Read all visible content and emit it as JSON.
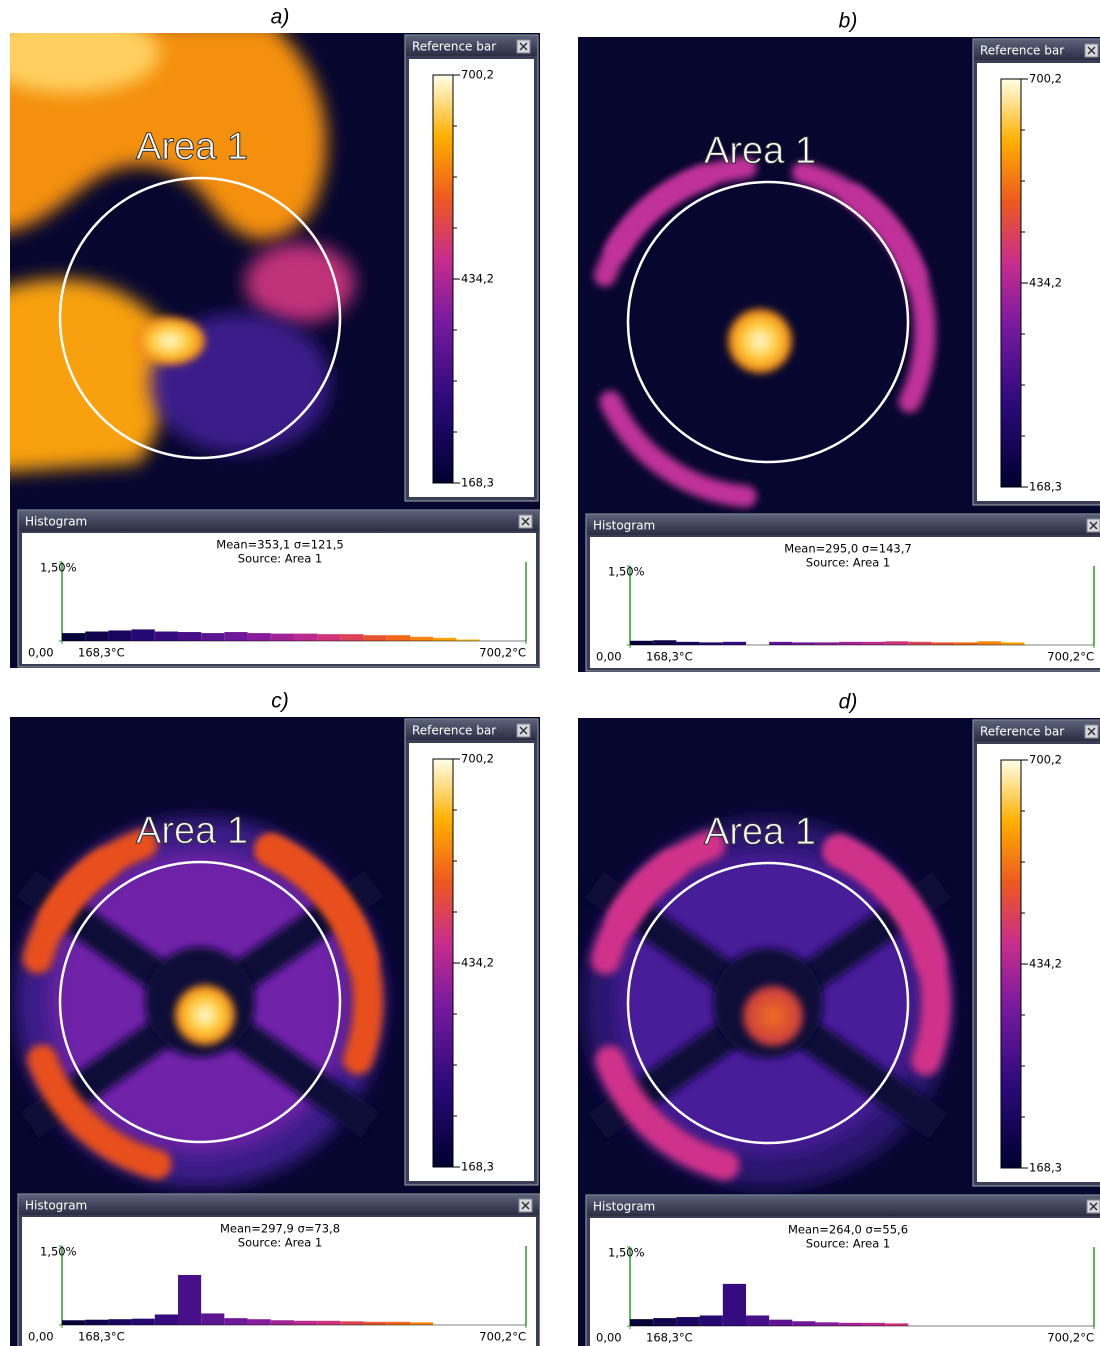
{
  "panels": [
    {
      "label": "a)",
      "area_label": "Area 1",
      "reference_bar": {
        "title": "Reference bar",
        "clim": [
          168.3,
          700.2
        ],
        "ticks": [
          {
            "value": 700.2,
            "label": "700,2"
          },
          {
            "value": 434.2,
            "label": "434,2"
          },
          {
            "value": 168.3,
            "label": "168,3"
          }
        ]
      },
      "histogram": {
        "type": "histogram",
        "title": "Histogram",
        "stats": "Mean=353,1 σ=121,5",
        "source": "Source:  Area 1",
        "bins": [
          168.3,
          194.9,
          221.5,
          248.1,
          274.7,
          301.3,
          327.8,
          354.4,
          381.0,
          407.6,
          434.2,
          460.8,
          487.4,
          514.0,
          540.6,
          567.2,
          593.8,
          620.4,
          647.0,
          673.6,
          700.2
        ],
        "values": [
          0.15,
          0.18,
          0.2,
          0.22,
          0.18,
          0.17,
          0.15,
          0.17,
          0.15,
          0.14,
          0.14,
          0.13,
          0.13,
          0.11,
          0.11,
          0.08,
          0.06,
          0.03,
          0,
          0
        ],
        "xlim": [
          168.3,
          700.2
        ],
        "xticks": [
          {
            "value": 168.3,
            "label": "168,3°C"
          },
          {
            "value": 700.2,
            "label": "700,2°C"
          }
        ],
        "ylim": [
          0,
          1.5
        ],
        "yticks": [
          {
            "value": 0,
            "label": "0,00"
          },
          {
            "value": 1.5,
            "label": "1,50%"
          }
        ]
      }
    },
    {
      "label": "b)",
      "area_label": "Area 1",
      "reference_bar": {
        "title": "Reference bar",
        "clim": [
          168.3,
          700.2
        ],
        "ticks": [
          {
            "value": 700.2,
            "label": "700,2"
          },
          {
            "value": 434.2,
            "label": "434,2"
          },
          {
            "value": 168.3,
            "label": "168,3"
          }
        ]
      },
      "histogram": {
        "type": "histogram",
        "title": "Histogram",
        "stats": "Mean=295,0 σ=143,7",
        "source": "Source:  Area 1",
        "bins": [
          168.3,
          194.9,
          221.5,
          248.1,
          274.7,
          301.3,
          327.8,
          354.4,
          381.0,
          407.6,
          434.2,
          460.8,
          487.4,
          514.0,
          540.6,
          567.2,
          593.8,
          620.4,
          647.0,
          673.6,
          700.2
        ],
        "values": [
          0.08,
          0.09,
          0.06,
          0.05,
          0.06,
          0,
          0.06,
          0.05,
          0.05,
          0.06,
          0.06,
          0.07,
          0.06,
          0.05,
          0.05,
          0.07,
          0.05,
          0,
          0,
          0
        ],
        "xlim": [
          168.3,
          700.2
        ],
        "xticks": [
          {
            "value": 168.3,
            "label": "168,3°C"
          },
          {
            "value": 700.2,
            "label": "700,2°C"
          }
        ],
        "ylim": [
          0,
          1.5
        ],
        "yticks": [
          {
            "value": 0,
            "label": "0,00"
          },
          {
            "value": 1.5,
            "label": "1,50%"
          }
        ]
      }
    },
    {
      "label": "c)",
      "area_label": "Area 1",
      "reference_bar": {
        "title": "Reference bar",
        "clim": [
          168.3,
          700.2
        ],
        "ticks": [
          {
            "value": 700.2,
            "label": "700,2"
          },
          {
            "value": 434.2,
            "label": "434,2"
          },
          {
            "value": 168.3,
            "label": "168,3"
          }
        ]
      },
      "histogram": {
        "type": "histogram",
        "title": "Histogram",
        "stats": "Mean=297,9 σ=73,8",
        "source": "Source:  Area 1",
        "bins": [
          168.3,
          194.9,
          221.5,
          248.1,
          274.7,
          301.3,
          327.8,
          354.4,
          381.0,
          407.6,
          434.2,
          460.8,
          487.4,
          514.0,
          540.6,
          567.2,
          593.8,
          620.4,
          647.0,
          673.6,
          700.2
        ],
        "values": [
          0.09,
          0.1,
          0.11,
          0.12,
          0.2,
          0.95,
          0.22,
          0.13,
          0.11,
          0.09,
          0.08,
          0.08,
          0.07,
          0.06,
          0.06,
          0.05,
          0,
          0,
          0,
          0
        ],
        "xlim": [
          168.3,
          700.2
        ],
        "xticks": [
          {
            "value": 168.3,
            "label": "168,3°C"
          },
          {
            "value": 700.2,
            "label": "700,2°C"
          }
        ],
        "ylim": [
          0,
          1.5
        ],
        "yticks": [
          {
            "value": 0,
            "label": "0,00"
          },
          {
            "value": 1.5,
            "label": "1,50%"
          }
        ]
      }
    },
    {
      "label": "d)",
      "area_label": "Area 1",
      "reference_bar": {
        "title": "Reference bar",
        "clim": [
          168.3,
          700.2
        ],
        "ticks": [
          {
            "value": 700.2,
            "label": "700,2"
          },
          {
            "value": 434.2,
            "label": "434,2"
          },
          {
            "value": 168.3,
            "label": "168,3"
          }
        ]
      },
      "histogram": {
        "type": "histogram",
        "title": "Histogram",
        "stats": "Mean=264,0 σ=55,6",
        "source": "Source:  Area 1",
        "bins": [
          168.3,
          194.9,
          221.5,
          248.1,
          274.7,
          301.3,
          327.8,
          354.4,
          381.0,
          407.6,
          434.2,
          460.8,
          487.4,
          514.0,
          540.6,
          567.2,
          593.8,
          620.4,
          647.0,
          673.6,
          700.2
        ],
        "values": [
          0.13,
          0.15,
          0.17,
          0.2,
          0.8,
          0.2,
          0.12,
          0.09,
          0.07,
          0.06,
          0.06,
          0.05,
          0,
          0,
          0,
          0,
          0,
          0,
          0,
          0
        ],
        "xlim": [
          168.3,
          700.2
        ],
        "xticks": [
          {
            "value": 168.3,
            "label": "168,3°C"
          },
          {
            "value": 700.2,
            "label": "700,2°C"
          }
        ],
        "ylim": [
          0,
          1.5
        ],
        "yticks": [
          {
            "value": 0,
            "label": "0,00"
          },
          {
            "value": 1.5,
            "label": "1,50%"
          }
        ]
      }
    }
  ]
}
